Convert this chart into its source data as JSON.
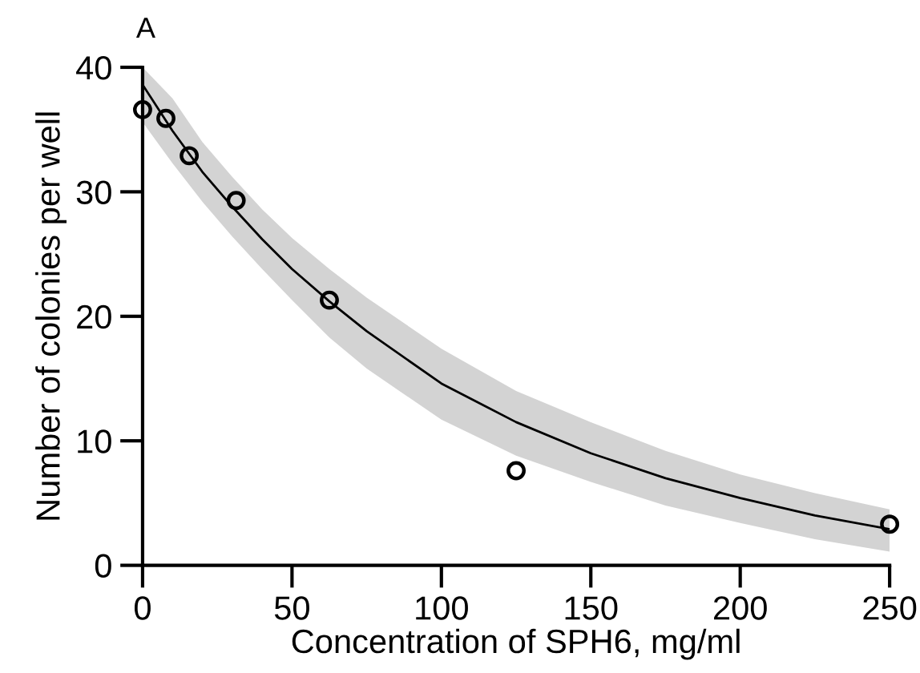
{
  "chart_data": {
    "type": "scatter",
    "xlabel": "Concentration of SPH6, mg/ml",
    "ylabel": "Number of colonies per well",
    "annotations": [
      "A"
    ],
    "xlim": [
      0,
      250
    ],
    "ylim": [
      0,
      40
    ],
    "xticks": [
      0,
      50,
      100,
      150,
      200,
      250
    ],
    "yticks": [
      0,
      10,
      20,
      30,
      40
    ],
    "grid": false,
    "marker": "circle",
    "series": [
      {
        "type": "line",
        "marker": "none",
        "color": "#000000",
        "x": [
          0,
          10,
          20,
          30,
          40,
          50,
          62.5,
          75,
          100,
          125,
          150,
          175,
          200,
          225,
          250
        ],
        "values": [
          38.6,
          34.9,
          31.6,
          28.8,
          26.2,
          23.8,
          21.2,
          18.8,
          14.6,
          11.5,
          9.0,
          7.0,
          5.4,
          4.0,
          2.9
        ],
        "lower": [
          35.6,
          32.3,
          29.2,
          26.4,
          23.8,
          21.3,
          18.3,
          15.8,
          11.7,
          8.8,
          6.7,
          4.8,
          3.4,
          2.1,
          1.1
        ],
        "upper": [
          40.0,
          37.5,
          34.0,
          31.2,
          28.6,
          26.3,
          23.8,
          21.5,
          17.4,
          14.0,
          11.5,
          9.2,
          7.3,
          5.8,
          4.5
        ]
      },
      {
        "color": "#000000",
        "x": [
          0,
          7.8,
          15.6,
          31.3,
          62.5,
          125,
          250
        ],
        "values": [
          36.6,
          35.9,
          32.9,
          29.3,
          21.3,
          7.6,
          3.3
        ]
      }
    ]
  }
}
